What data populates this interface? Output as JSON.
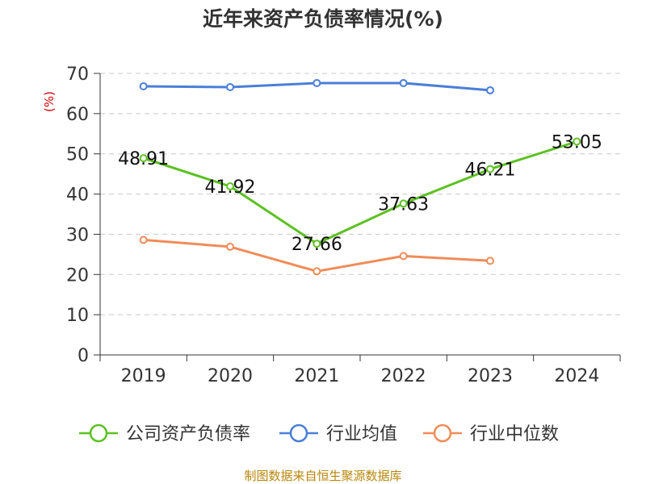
{
  "chart_data": {
    "type": "line",
    "title": "近年来资产负债率情况(%)",
    "ylabel": "(%)",
    "xlabel": "",
    "categories": [
      "2019",
      "2020",
      "2021",
      "2022",
      "2023",
      "2024"
    ],
    "ylim": [
      0,
      70
    ],
    "yticks": [
      0,
      10,
      20,
      30,
      40,
      50,
      60,
      70
    ],
    "grid": true,
    "legend_position": "bottom",
    "series": [
      {
        "name": "公司资产负债率",
        "color": "#5cc122",
        "values": [
          48.91,
          41.92,
          27.66,
          37.63,
          46.21,
          53.05
        ],
        "labels": [
          "48.91",
          "41.92",
          "27.66",
          "37.63",
          "46.21",
          "53.05"
        ]
      },
      {
        "name": "行业均值",
        "color": "#4a7fd8",
        "values": [
          66.8,
          66.6,
          67.6,
          67.6,
          65.8,
          null
        ]
      },
      {
        "name": "行业中位数",
        "color": "#f08c58",
        "values": [
          28.6,
          26.9,
          20.8,
          24.6,
          23.4,
          null
        ]
      }
    ],
    "source": "制图数据来自恒生聚源数据库"
  }
}
